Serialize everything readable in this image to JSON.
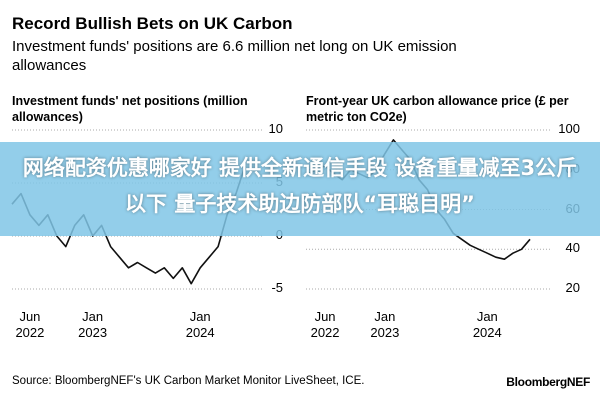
{
  "header": {
    "title": "Record Bullish Bets on UK Carbon",
    "subtitle": "Investment funds' positions are 6.6 million net long on UK emission allowances"
  },
  "chart_data": [
    {
      "type": "line",
      "title": "Investment funds' net positions (million allowances)",
      "x": [
        "2022-04",
        "2022-05",
        "2022-06",
        "2022-07",
        "2022-08",
        "2022-09",
        "2022-10",
        "2022-11",
        "2022-12",
        "2023-01",
        "2023-02",
        "2023-03",
        "2023-04",
        "2023-05",
        "2023-06",
        "2023-07",
        "2023-08",
        "2023-09",
        "2023-10",
        "2023-11",
        "2023-12",
        "2024-01",
        "2024-02",
        "2024-03",
        "2024-04",
        "2024-05",
        "2024-06"
      ],
      "values": [
        3,
        4,
        2,
        1,
        2,
        0,
        -1,
        1,
        2,
        0,
        1,
        -1,
        -2,
        -3,
        -2.5,
        -3,
        -3.5,
        -3,
        -4,
        -3,
        -4.5,
        -3,
        -2,
        -1,
        2,
        4,
        6.6
      ],
      "color": "#111111",
      "xlim": [
        "2022-04",
        "2024-06"
      ],
      "xticks": [
        {
          "value": "2022-06",
          "label": "Jun 2022"
        },
        {
          "value": "2023-01",
          "label": "Jan 2023"
        },
        {
          "value": "2024-01",
          "label": "Jan 2024"
        }
      ],
      "ylim": [
        -5,
        10
      ],
      "yticks": [
        10,
        5,
        0,
        -5
      ],
      "grid": true
    },
    {
      "type": "line",
      "title": "Front-year UK carbon allowance price (£ per metric ton CO2e)",
      "x": [
        "2022-04",
        "2022-05",
        "2022-06",
        "2022-07",
        "2022-08",
        "2022-09",
        "2022-10",
        "2022-11",
        "2022-12",
        "2023-01",
        "2023-02",
        "2023-03",
        "2023-04",
        "2023-05",
        "2023-06",
        "2023-07",
        "2023-08",
        "2023-09",
        "2023-10",
        "2023-11",
        "2023-12",
        "2024-01",
        "2024-02",
        "2024-03",
        "2024-04",
        "2024-05",
        "2024-06"
      ],
      "values": [
        78,
        80,
        82,
        78,
        75,
        80,
        78,
        76,
        80,
        88,
        95,
        90,
        85,
        75,
        70,
        60,
        55,
        48,
        45,
        42,
        40,
        38,
        36,
        35,
        38,
        40,
        45
      ],
      "color": "#111111",
      "xlim": [
        "2022-04",
        "2024-06"
      ],
      "xticks": [
        {
          "value": "2022-06",
          "label": "Jun 2022"
        },
        {
          "value": "2023-01",
          "label": "Jan 2023"
        },
        {
          "value": "2024-01",
          "label": "Jan 2024"
        }
      ],
      "ylim": [
        20,
        100
      ],
      "yticks": [
        100,
        80,
        60,
        40,
        20
      ],
      "grid": true
    }
  ],
  "footer": {
    "source": "Source: BloombergNEF's UK Carbon Market Monitor LiveSheet, ICE.",
    "logo": "BloombergNEF"
  },
  "overlay": {
    "text": "网络配资优惠哪家好 提供全新通信手段 设备重量减至3公斤以下 量子技术助边防部队“耳聪目明”"
  }
}
